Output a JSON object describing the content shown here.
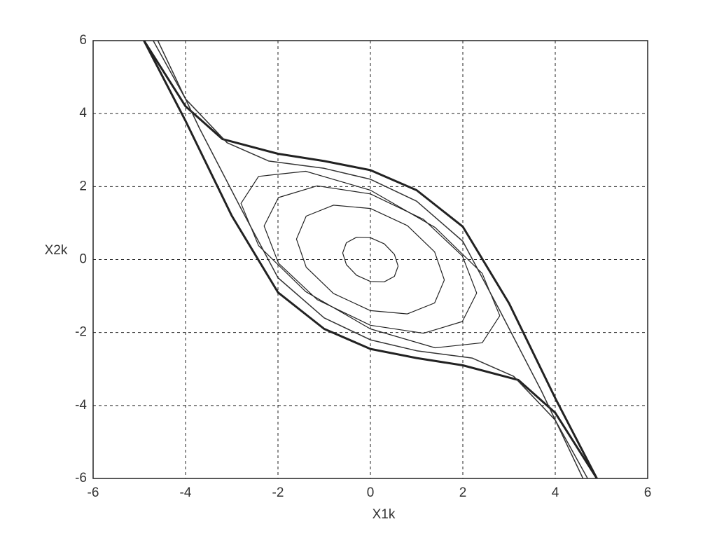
{
  "chart_data": {
    "type": "line",
    "xlabel": "X1k",
    "ylabel": "X2k",
    "xlim": [
      -6,
      6
    ],
    "ylim": [
      -6,
      6
    ],
    "xticks": [
      -6,
      -4,
      -2,
      0,
      2,
      4,
      6
    ],
    "yticks": [
      -6,
      -4,
      -2,
      0,
      2,
      4,
      6
    ],
    "grid": true,
    "series": [
      {
        "color": "#222222",
        "line_width": 1.2,
        "x": [
          0.6,
          0.52,
          0.3,
          0,
          -0.3,
          -0.52,
          -0.6,
          -0.52,
          -0.3,
          0,
          0.3,
          0.52,
          0.6
        ],
        "values": [
          -0.18,
          0.14,
          0.43,
          0.6,
          0.61,
          0.46,
          0.18,
          -0.14,
          -0.43,
          -0.6,
          -0.61,
          -0.46,
          -0.18
        ]
      },
      {
        "color": "#222222",
        "line_width": 1.2,
        "x": [
          1.6,
          1.39,
          0.8,
          0,
          -0.8,
          -1.39,
          -1.6,
          -1.39,
          -0.8,
          0,
          0.8,
          1.39,
          1.6
        ],
        "values": [
          -0.56,
          0.21,
          0.93,
          1.4,
          1.49,
          1.19,
          0.56,
          -0.21,
          -0.93,
          -1.4,
          -1.49,
          -1.19,
          -0.56
        ]
      },
      {
        "color": "#222222",
        "line_width": 1.2,
        "x": [
          2.3,
          1.99,
          1.15,
          0,
          -1.15,
          -1.99,
          -2.3,
          -1.99,
          -1.15,
          0,
          1.15,
          1.99,
          2.3
        ],
        "values": [
          -0.92,
          0.1,
          1.1,
          1.8,
          2.02,
          1.7,
          0.92,
          -0.1,
          -1.1,
          -1.8,
          -2.02,
          -1.7,
          -0.92
        ]
      },
      {
        "color": "#222222",
        "line_width": 1.2,
        "x": [
          2.8,
          2.42,
          1.4,
          0,
          -1.4,
          -2.42,
          -2.8,
          -2.42,
          -1.4,
          0,
          1.4,
          2.42,
          2.8
        ],
        "values": [
          -1.54,
          -0.38,
          0.88,
          1.9,
          2.42,
          2.28,
          1.54,
          0.38,
          -0.88,
          -1.9,
          -2.42,
          -2.28,
          -1.54
        ]
      },
      {
        "color": "#222222",
        "line_width": 3,
        "x": [
          -4.9,
          -4,
          -3.2,
          -2,
          -1,
          0,
          1,
          2,
          3,
          4,
          4.9
        ],
        "values": [
          6,
          4.2,
          3.3,
          2.9,
          2.7,
          2.45,
          1.9,
          0.9,
          -1.2,
          -3.8,
          -6
        ]
      },
      {
        "color": "#222222",
        "line_width": 3,
        "x": [
          4.9,
          4,
          3.2,
          2,
          1,
          0,
          -1,
          -2,
          -3,
          -4,
          -4.9
        ],
        "values": [
          -6,
          -4.2,
          -3.3,
          -2.9,
          -2.7,
          -2.45,
          -1.9,
          -0.9,
          1.2,
          3.8,
          6
        ]
      },
      {
        "color": "#333333",
        "line_width": 1.5,
        "x": [
          -4.7,
          -4,
          -3.1,
          -2.2,
          -1,
          0,
          1,
          2,
          2.8,
          3.7,
          4.6
        ],
        "values": [
          6,
          4.4,
          3.2,
          2.7,
          2.5,
          2.2,
          1.6,
          0.5,
          -1.4,
          -3.6,
          -6
        ]
      },
      {
        "color": "#333333",
        "line_width": 1.5,
        "x": [
          4.7,
          4,
          3.1,
          2.2,
          1,
          0,
          -1,
          -2,
          -2.8,
          -3.7,
          -4.6
        ],
        "values": [
          -6,
          -4.4,
          -3.2,
          -2.7,
          -2.5,
          -2.2,
          -1.6,
          -0.5,
          1.4,
          3.6,
          6
        ]
      }
    ]
  }
}
